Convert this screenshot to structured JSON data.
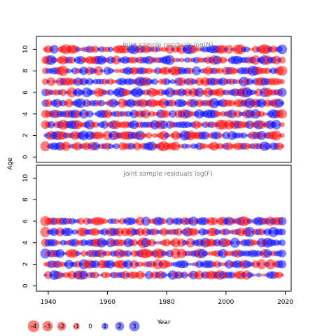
{
  "chart_data": {
    "type": "scatter",
    "subtype": "bubble",
    "colors": {
      "positive": "#0000ff",
      "negative": "#ff0000",
      "frame": "#000000",
      "title": "#7f7f7f"
    },
    "ylabel": "Age",
    "xlabel": "Year",
    "x_ticks": [
      "1940",
      "1960",
      "1980",
      "2000",
      "2020"
    ],
    "xlim": [
      1936,
      2022
    ],
    "panels": [
      {
        "title": "Joint sample residuals log(N)",
        "ylim": [
          -0.5,
          11.2
        ],
        "y_ticks": [
          "0",
          "2",
          "4",
          "6",
          "8",
          "10"
        ],
        "ages": [
          1,
          10
        ],
        "years": [
          1939,
          2019
        ]
      },
      {
        "title": "Joint sample residuals log(F)",
        "ylim": [
          -0.5,
          11.2
        ],
        "y_ticks": [
          "0",
          "2",
          "4",
          "6",
          "8",
          "10"
        ],
        "ages": [
          1,
          6
        ],
        "years": [
          1939,
          2019
        ]
      }
    ],
    "legend": {
      "items": [
        {
          "label": "-4",
          "value": -4
        },
        {
          "label": "-3",
          "value": -3
        },
        {
          "label": "-2",
          "value": -2
        },
        {
          "label": "-1",
          "value": -1
        },
        {
          "label": "0",
          "value": 0
        },
        {
          "label": "1",
          "value": 1
        },
        {
          "label": "2",
          "value": 2
        },
        {
          "label": "3",
          "value": 3
        }
      ]
    }
  }
}
